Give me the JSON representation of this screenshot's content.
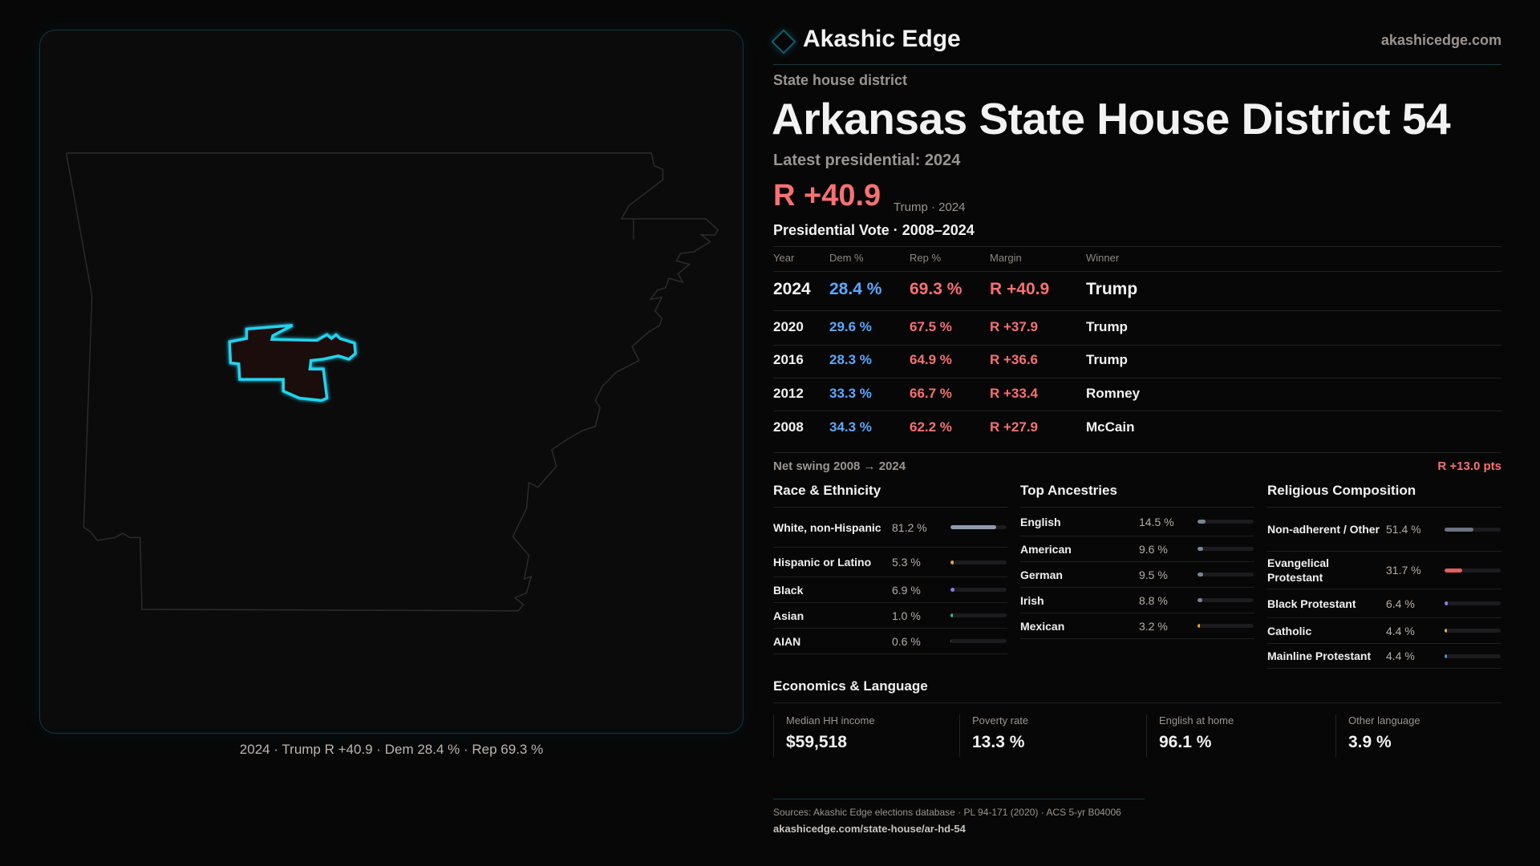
{
  "brand": {
    "name": "Akashic Edge",
    "site": "akashicedge.com",
    "accent": "#22d3ee"
  },
  "map": {
    "caption": "2024 · Trump R +40.9 · Dem 28.4 % · Rep 69.3 %"
  },
  "header": {
    "kicker": "State house district",
    "title": "Arkansas State House District 54",
    "latest": "Latest presidential: 2024",
    "margin": "R +40.9",
    "margin_sub": "Trump · 2024"
  },
  "pres": {
    "title": "Presidential Vote · 2008–2024",
    "columns": [
      "Year",
      "Dem %",
      "Rep %",
      "Margin",
      "Winner"
    ],
    "rows": [
      [
        "2024",
        "28.4 %",
        "69.3 %",
        "R +40.9",
        "Trump"
      ],
      [
        "2020",
        "29.6 %",
        "67.5 %",
        "R +37.9",
        "Trump"
      ],
      [
        "2016",
        "28.3 %",
        "64.9 %",
        "R +36.6",
        "Trump"
      ],
      [
        "2012",
        "33.3 %",
        "66.7 %",
        "R +33.4",
        "Romney"
      ],
      [
        "2008",
        "34.3 %",
        "62.2 %",
        "R +27.9",
        "McCain"
      ]
    ],
    "swing_label": "Net swing 2008 → 2024",
    "swing_value": "R +13.0 pts"
  },
  "race": {
    "title": "Race & Ethnicity",
    "items": [
      {
        "label": "White, non-Hispanic",
        "value": "81.2 %",
        "pct": 81.2,
        "color": "#8e9ab0"
      },
      {
        "label": "Hispanic or Latino",
        "value": "5.3 %",
        "pct": 5.3,
        "color": "#e8a23a"
      },
      {
        "label": "Black",
        "value": "6.9 %",
        "pct": 6.9,
        "color": "#8b7cf0"
      },
      {
        "label": "Asian",
        "value": "1.0 %",
        "pct": 1.0,
        "color": "#2fbf8f"
      },
      {
        "label": "AIAN",
        "value": "0.6 %",
        "pct": 0.6,
        "color": "#555"
      }
    ]
  },
  "ancestry": {
    "title": "Top Ancestries",
    "items": [
      {
        "label": "English",
        "value": "14.5 %",
        "pct": 14.5,
        "color": "#7b8494"
      },
      {
        "label": "American",
        "value": "9.6 %",
        "pct": 9.6,
        "color": "#7b8494"
      },
      {
        "label": "German",
        "value": "9.5 %",
        "pct": 9.5,
        "color": "#7b8494"
      },
      {
        "label": "Irish",
        "value": "8.8 %",
        "pct": 8.8,
        "color": "#7b8494"
      },
      {
        "label": "Mexican",
        "value": "3.2 %",
        "pct": 3.2,
        "color": "#e8a23a"
      }
    ]
  },
  "religion": {
    "title": "Religious Composition",
    "items": [
      {
        "label": "Non-adherent / Other",
        "value": "51.4 %",
        "pct": 51.4,
        "color": "#6b7280"
      },
      {
        "label": "Evangelical Protestant",
        "value": "31.7 %",
        "pct": 31.7,
        "color": "#e06060"
      },
      {
        "label": "Black Protestant",
        "value": "6.4 %",
        "pct": 6.4,
        "color": "#8b7cf0"
      },
      {
        "label": "Catholic",
        "value": "4.4 %",
        "pct": 4.4,
        "color": "#e3b341"
      },
      {
        "label": "Mainline Protestant",
        "value": "4.4 %",
        "pct": 4.4,
        "color": "#4a90e2"
      }
    ]
  },
  "econ": {
    "title": "Economics & Language",
    "cards": [
      {
        "label": "Median HH income",
        "value": "$59,518"
      },
      {
        "label": "Poverty rate",
        "value": "13.3 %"
      },
      {
        "label": "English at home",
        "value": "96.1 %"
      },
      {
        "label": "Other language",
        "value": "3.9 %"
      }
    ]
  },
  "footer": {
    "sources": "Sources: Akashic Edge elections database · PL 94-171 (2020) · ACS 5-yr B04006",
    "url": "akashicedge.com/state-house/ar-hd-54"
  }
}
